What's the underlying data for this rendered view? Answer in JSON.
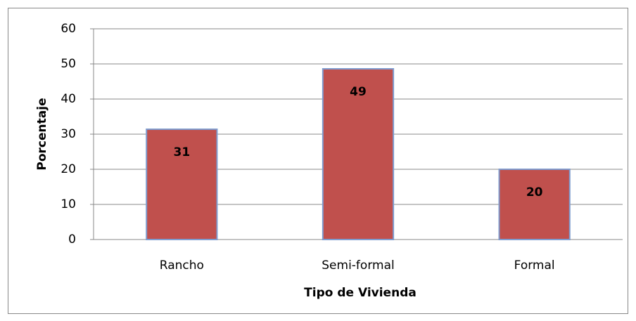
{
  "chart_data": {
    "type": "bar",
    "x_label": "Tipo de Vivienda",
    "y_label": "Porcentaje",
    "categories": [
      "Rancho",
      "Semi-formal",
      "Formal"
    ],
    "values": [
      31.4,
      48.6,
      20
    ],
    "value_labels": [
      "31",
      "49",
      "20"
    ],
    "color": "#c0504d",
    "ylim": [
      0,
      60
    ],
    "yticks": [
      0,
      10,
      20,
      30,
      40,
      50,
      60
    ],
    "grid": true
  }
}
